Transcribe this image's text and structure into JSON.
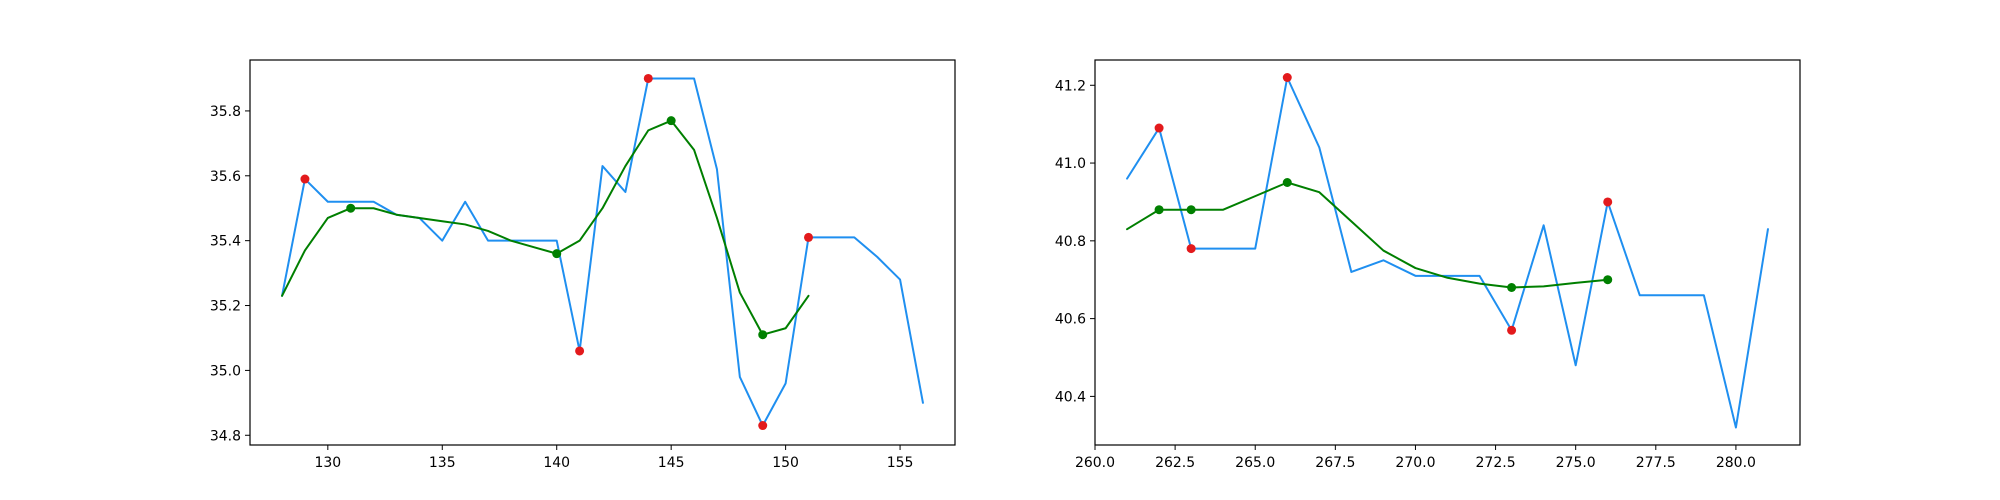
{
  "colors": {
    "raw_line": "#1f8ff0",
    "smooth_line": "#007f00",
    "peak_marker": "#e31a1c",
    "smooth_marker": "#008000",
    "axes": "#000000",
    "background": "#ffffff"
  },
  "chart_data": [
    {
      "type": "line",
      "grid": false,
      "legend": "none",
      "title": "",
      "xlabel": "",
      "ylabel": "",
      "xlim": [
        126.6,
        157.4
      ],
      "ylim": [
        34.77,
        35.957
      ],
      "xticks": [
        130,
        135,
        140,
        145,
        150,
        155
      ],
      "xtick_labels": [
        "130",
        "135",
        "140",
        "145",
        "150",
        "155"
      ],
      "yticks": [
        34.8,
        35.0,
        35.2,
        35.4,
        35.6,
        35.8
      ],
      "ytick_labels": [
        "34.8",
        "35.0",
        "35.2",
        "35.4",
        "35.6",
        "35.8"
      ],
      "series": [
        {
          "style": "line",
          "color_key": "raw_line",
          "x": [
            128,
            129,
            130,
            131,
            132,
            133,
            134,
            135,
            136,
            137,
            138,
            139,
            140,
            141,
            142,
            143,
            144,
            145,
            146,
            147,
            148,
            149,
            150,
            151,
            152,
            153,
            154,
            155,
            156
          ],
          "y": [
            35.23,
            35.59,
            35.52,
            35.52,
            35.52,
            35.48,
            35.47,
            35.4,
            35.52,
            35.4,
            35.4,
            35.4,
            35.4,
            35.06,
            35.63,
            35.55,
            35.9,
            35.9,
            35.9,
            35.62,
            34.98,
            34.83,
            34.96,
            35.41,
            35.41,
            35.41,
            35.35,
            35.28,
            34.9
          ]
        },
        {
          "style": "line",
          "color_key": "smooth_line",
          "x": [
            128,
            129,
            130,
            131,
            132,
            133,
            134,
            135,
            136,
            137,
            138,
            139,
            140,
            141,
            142,
            143,
            144,
            145,
            146,
            147,
            148,
            149,
            150,
            151
          ],
          "y": [
            35.23,
            35.37,
            35.47,
            35.5,
            35.5,
            35.48,
            35.47,
            35.46,
            35.45,
            35.43,
            35.4,
            35.38,
            35.36,
            35.4,
            35.5,
            35.63,
            35.74,
            35.77,
            35.68,
            35.47,
            35.24,
            35.11,
            35.13,
            35.23
          ]
        },
        {
          "style": "scatter",
          "color_key": "peak_marker",
          "x": [
            129,
            141,
            144,
            149,
            151
          ],
          "y": [
            35.59,
            35.06,
            35.9,
            34.83,
            35.41
          ]
        },
        {
          "style": "scatter",
          "color_key": "smooth_marker",
          "x": [
            131,
            140,
            145,
            149
          ],
          "y": [
            35.5,
            35.36,
            35.77,
            35.11
          ]
        }
      ]
    },
    {
      "type": "line",
      "grid": false,
      "legend": "none",
      "title": "",
      "xlabel": "",
      "ylabel": "",
      "xlim": [
        260.0,
        282.0
      ],
      "ylim": [
        40.275,
        41.265
      ],
      "xticks": [
        260.0,
        262.5,
        265.0,
        267.5,
        270.0,
        272.5,
        275.0,
        277.5,
        280.0
      ],
      "xtick_labels": [
        "260.0",
        "262.5",
        "265.0",
        "267.5",
        "270.0",
        "272.5",
        "275.0",
        "277.5",
        "280.0"
      ],
      "yticks": [
        40.4,
        40.6,
        40.8,
        41.0,
        41.2
      ],
      "ytick_labels": [
        "40.4",
        "40.6",
        "40.8",
        "41.0",
        "41.2"
      ],
      "series": [
        {
          "style": "line",
          "color_key": "raw_line",
          "x": [
            261,
            262,
            263,
            264,
            265,
            266,
            267,
            268,
            269,
            270,
            271,
            272,
            273,
            274,
            275,
            276,
            277,
            278,
            279,
            280,
            281
          ],
          "y": [
            40.96,
            41.09,
            40.78,
            40.78,
            40.78,
            41.22,
            41.04,
            40.72,
            40.75,
            40.71,
            40.71,
            40.71,
            40.57,
            40.84,
            40.48,
            40.9,
            40.66,
            40.66,
            40.66,
            40.32,
            40.83
          ]
        },
        {
          "style": "line",
          "color_key": "smooth_line",
          "x": [
            261,
            262,
            263,
            264,
            265,
            266,
            267,
            268,
            269,
            270,
            271,
            272,
            273,
            274,
            275,
            276
          ],
          "y": [
            40.83,
            40.88,
            40.88,
            40.88,
            40.915,
            40.95,
            40.925,
            40.85,
            40.775,
            40.73,
            40.705,
            40.69,
            40.68,
            40.683,
            40.692,
            40.7
          ]
        },
        {
          "style": "scatter",
          "color_key": "peak_marker",
          "x": [
            262,
            263,
            266,
            273,
            276
          ],
          "y": [
            41.09,
            40.78,
            41.22,
            40.57,
            40.9
          ]
        },
        {
          "style": "scatter",
          "color_key": "smooth_marker",
          "x": [
            262,
            263,
            266,
            273,
            276
          ],
          "y": [
            40.88,
            40.88,
            40.95,
            40.68,
            40.7
          ]
        }
      ]
    }
  ]
}
